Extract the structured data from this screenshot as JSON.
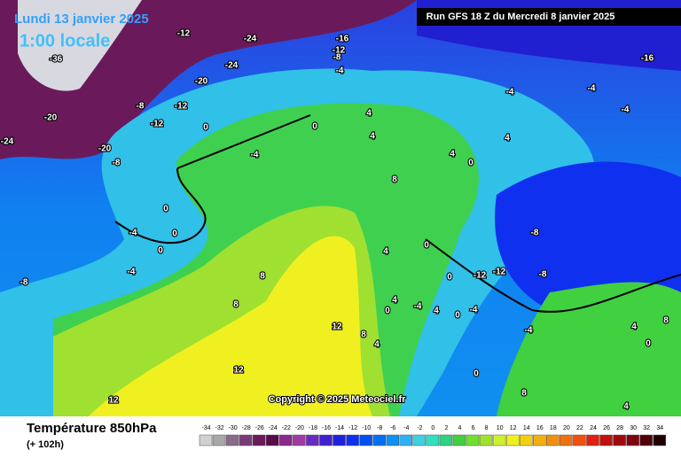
{
  "header": {
    "date": "Lundi 13 janvier 2025",
    "time": "1:00 locale",
    "run": "Run GFS 18 Z du Mercredi 8 janvier 2025"
  },
  "copyright": "Copyright © 2025 Meteociel.fr",
  "footer": {
    "title": "Température 850hPa",
    "lead": "(+ 102h)"
  },
  "legend": {
    "values": [
      -34,
      -32,
      -30,
      -28,
      -26,
      -24,
      -22,
      -20,
      -18,
      -16,
      -14,
      -12,
      -10,
      -8,
      -6,
      -4,
      -2,
      0,
      2,
      4,
      6,
      8,
      10,
      12,
      14,
      16,
      18,
      20,
      22,
      24,
      26,
      28,
      30,
      32,
      34
    ],
    "colors": [
      "#d0d0d0",
      "#a8a8a8",
      "#8a6a8a",
      "#7a3a7a",
      "#6a1a5a",
      "#5a0a4a",
      "#8a2a8a",
      "#a03aa0",
      "#6a2ac0",
      "#4020d0",
      "#2020e0",
      "#1030f0",
      "#0050f0",
      "#0070f0",
      "#1090f0",
      "#30b0f0",
      "#40d0e0",
      "#30e0c0",
      "#30d080",
      "#40d040",
      "#70e030",
      "#a0e030",
      "#d0f030",
      "#f0f020",
      "#f0d010",
      "#f0b010",
      "#f09010",
      "#f07010",
      "#f05010",
      "#e02010",
      "#c01010",
      "#a00810",
      "#800010",
      "#500008",
      "#200000"
    ]
  },
  "contour_labels": [
    "-12",
    "-24",
    "-16",
    "-12",
    "-8",
    "-24",
    "-20",
    "-16",
    "-4",
    "-8",
    "-12",
    "-12",
    "0",
    "0",
    "-20",
    "-8",
    "-4",
    "4",
    "4",
    "-4",
    "-4",
    "-4",
    "4",
    "0",
    "4",
    "8",
    "0",
    "-4",
    "0",
    "0",
    "-4",
    "-8",
    "8",
    "8",
    "4",
    "0",
    "-8",
    "-12",
    "-12",
    "-8",
    "0",
    "12",
    "8",
    "4",
    "-4",
    "4",
    "0",
    "-4",
    "-4",
    "4",
    "8",
    "0",
    "12",
    "12",
    "0",
    "8",
    "4",
    "4",
    "0",
    "-24",
    "-20",
    "-36"
  ]
}
